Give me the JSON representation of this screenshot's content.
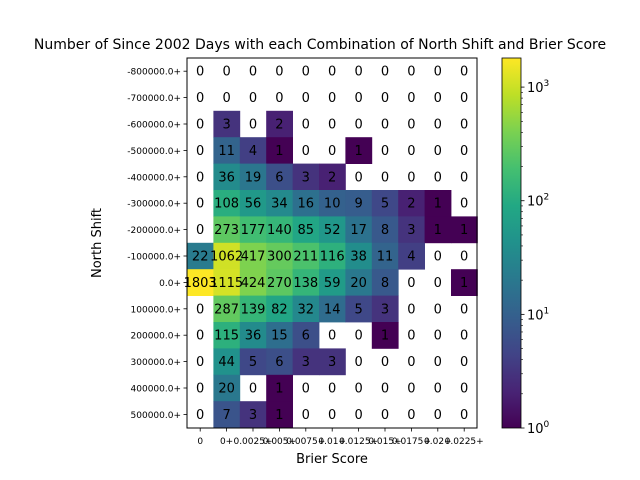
{
  "chart_data": {
    "type": "heatmap",
    "title": "Number of Since 2002 Days with each Combination of North Shift and Brier Score",
    "xlabel": "Brier Score",
    "ylabel": "North Shift",
    "x_categories": [
      "0",
      "0+",
      "0.0025+",
      "0.005+",
      "0.0075+",
      "0.01+",
      "0.0125+",
      "0.015+",
      "0.0175+",
      "0.02+",
      "0.0225+"
    ],
    "y_categories": [
      "-800000.0+",
      "-700000.0+",
      "-600000.0+",
      "-500000.0+",
      "-400000.0+",
      "-300000.0+",
      "-200000.0+",
      "-100000.0+",
      "0.0+",
      "100000.0+",
      "200000.0+",
      "300000.0+",
      "400000.0+",
      "500000.0+"
    ],
    "values": [
      [
        0,
        0,
        0,
        0,
        0,
        0,
        0,
        0,
        0,
        0,
        0
      ],
      [
        0,
        0,
        0,
        0,
        0,
        0,
        0,
        0,
        0,
        0,
        0
      ],
      [
        0,
        3,
        0,
        2,
        0,
        0,
        0,
        0,
        0,
        0,
        0
      ],
      [
        0,
        11,
        4,
        1,
        0,
        0,
        1,
        0,
        0,
        0,
        0
      ],
      [
        0,
        36,
        19,
        6,
        3,
        2,
        0,
        0,
        0,
        0,
        0
      ],
      [
        0,
        108,
        56,
        34,
        16,
        10,
        9,
        5,
        2,
        1,
        0
      ],
      [
        0,
        273,
        177,
        140,
        85,
        52,
        17,
        8,
        3,
        1,
        1
      ],
      [
        22,
        1062,
        417,
        300,
        211,
        116,
        38,
        11,
        4,
        0,
        0
      ],
      [
        1803,
        1115,
        424,
        270,
        138,
        59,
        20,
        8,
        0,
        0,
        1
      ],
      [
        0,
        287,
        139,
        82,
        32,
        14,
        5,
        3,
        0,
        0,
        0
      ],
      [
        0,
        115,
        36,
        15,
        6,
        0,
        0,
        1,
        0,
        0,
        0
      ],
      [
        0,
        44,
        5,
        6,
        3,
        3,
        0,
        0,
        0,
        0,
        0
      ],
      [
        0,
        20,
        0,
        1,
        0,
        0,
        0,
        0,
        0,
        0,
        0
      ],
      [
        0,
        7,
        3,
        1,
        0,
        0,
        0,
        0,
        0,
        0,
        0
      ]
    ],
    "color_scale": "log",
    "colormap": "viridis",
    "zero_cells": "blank",
    "colorbar": {
      "range": [
        1,
        1803
      ],
      "tick_values": [
        1,
        10,
        100,
        1000
      ],
      "tick_labels": [
        "10^0",
        "10^1",
        "10^2",
        "10^3"
      ]
    },
    "grid": false
  }
}
